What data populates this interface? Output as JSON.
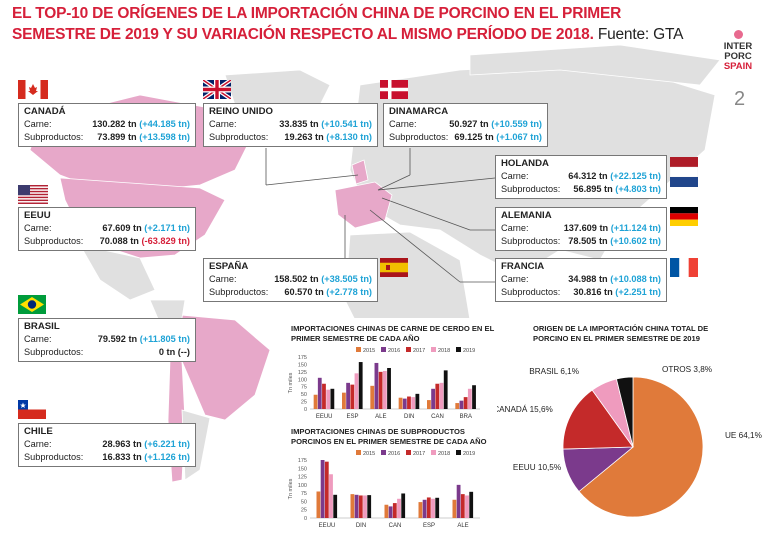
{
  "title": "EL TOP-10 DE ORÍGENES DE LA IMPORTACIÓN CHINA DE PORCINO EN EL PRIMER SEMESTRE DE 2019 Y SU VARIACIÓN RESPECTO AL MISMO PERÍODO DE 2018.",
  "source": "Fuente: GTA",
  "logo": {
    "line1": "INTER",
    "line2": "PORC",
    "line3": "SPAIN"
  },
  "page_number": "2",
  "labels": {
    "carne": "Carne:",
    "subproductos": "Subproductos:"
  },
  "countries": [
    {
      "id": "canada",
      "name": "CANADÁ",
      "carne": "130.282 tn",
      "carne_var": "(+44.185 tn)",
      "carne_sign": "pos",
      "sub": "73.899 tn",
      "sub_var": "(+13.598 tn)",
      "sub_sign": "pos"
    },
    {
      "id": "reino",
      "name": "REINO UNIDO",
      "carne": "33.835 tn",
      "carne_var": "(+10.541 tn)",
      "carne_sign": "pos",
      "sub": "19.263 tn",
      "sub_var": "(+8.130 tn)",
      "sub_sign": "pos"
    },
    {
      "id": "dinamarca",
      "name": "DINAMARCA",
      "carne": "50.927 tn",
      "carne_var": "(+10.559 tn)",
      "carne_sign": "pos",
      "sub": "69.125 tn",
      "sub_var": "(+1.067 tn)",
      "sub_sign": "pos"
    },
    {
      "id": "holanda",
      "name": "HOLANDA",
      "carne": "64.312 tn",
      "carne_var": "(+22.125 tn)",
      "carne_sign": "pos",
      "sub": "56.895 tn",
      "sub_var": "(+4.803 tn)",
      "sub_sign": "pos"
    },
    {
      "id": "eeuu",
      "name": "EEUU",
      "carne": "67.609 tn",
      "carne_var": "(+2.171 tn)",
      "carne_sign": "pos",
      "sub": "70.088 tn",
      "sub_var": "(-63.829 tn)",
      "sub_sign": "neg"
    },
    {
      "id": "alemania",
      "name": "ALEMANIA",
      "carne": "137.609 tn",
      "carne_var": "(+11.124 tn)",
      "carne_sign": "pos",
      "sub": "78.505 tn",
      "sub_var": "(+10.602 tn)",
      "sub_sign": "pos"
    },
    {
      "id": "espana",
      "name": "ESPAÑA",
      "carne": "158.502 tn",
      "carne_var": "(+38.505 tn)",
      "carne_sign": "pos",
      "sub": "60.570 tn",
      "sub_var": "(+2.778 tn)",
      "sub_sign": "pos"
    },
    {
      "id": "francia",
      "name": "FRANCIA",
      "carne": "34.988 tn",
      "carne_var": "(+10.088 tn)",
      "carne_sign": "pos",
      "sub": "30.816 tn",
      "sub_var": "(+2.251 tn)",
      "sub_sign": "pos"
    },
    {
      "id": "brasil",
      "name": "BRASIL",
      "carne": "79.592 tn",
      "carne_var": "(+11.805 tn)",
      "carne_sign": "pos",
      "sub": "0 tn",
      "sub_var": "(--)",
      "sub_sign": "none"
    },
    {
      "id": "chile",
      "name": "CHILE",
      "carne": "28.963 tn",
      "carne_var": "(+6.221 tn)",
      "carne_sign": "pos",
      "sub": "16.833 tn",
      "sub_var": "(+1.126 tn)",
      "sub_sign": "pos"
    }
  ],
  "colors": {
    "title_red": "#d6203a",
    "positive": "#1fa3d6",
    "negative": "#d6203a",
    "map_land": "#e0e0e0",
    "map_highlight": "#e7a8c9"
  },
  "chart_data": [
    {
      "type": "bar",
      "title": "IMPORTACIONES CHINAS DE CARNE DE CERDO EN EL PRIMER SEMESTRE DE CADA AÑO",
      "ylabel": "Tn miles",
      "ylim": [
        0,
        175
      ],
      "yticks": [
        "0",
        "25",
        "50",
        "75",
        "100",
        "125",
        "150",
        "175"
      ],
      "categories": [
        "EEUU",
        "ESP",
        "ALE",
        "DIN",
        "CAN",
        "BRA"
      ],
      "series": [
        {
          "name": "2015",
          "color": "#e07a3a",
          "values": [
            48,
            55,
            78,
            38,
            30,
            20
          ]
        },
        {
          "name": "2016",
          "color": "#7b3a8c",
          "values": [
            105,
            88,
            155,
            35,
            68,
            28
          ]
        },
        {
          "name": "2017",
          "color": "#c42a2a",
          "values": [
            85,
            82,
            125,
            42,
            85,
            40
          ]
        },
        {
          "name": "2018",
          "color": "#ef9bbe",
          "values": [
            65,
            120,
            128,
            40,
            88,
            68
          ]
        },
        {
          "name": "2019",
          "color": "#111111",
          "values": [
            68,
            158,
            138,
            51,
            130,
            80
          ]
        }
      ]
    },
    {
      "type": "bar",
      "title": "IMPORTACIONES CHINAS DE SUBPRODUCTOS PORCINOS EN EL PRIMER SEMESTRE DE CADA AÑO",
      "ylabel": "Tn miles",
      "ylim": [
        0,
        175
      ],
      "yticks": [
        "0",
        "25",
        "50",
        "75",
        "100",
        "125",
        "150",
        "175"
      ],
      "categories": [
        "EEUU",
        "DIN",
        "CAN",
        "ESP",
        "ALE"
      ],
      "series": [
        {
          "name": "2015",
          "color": "#e07a3a",
          "values": [
            80,
            72,
            40,
            48,
            55
          ]
        },
        {
          "name": "2016",
          "color": "#7b3a8c",
          "values": [
            180,
            70,
            35,
            55,
            100
          ]
        },
        {
          "name": "2017",
          "color": "#c42a2a",
          "values": [
            170,
            68,
            45,
            62,
            72
          ]
        },
        {
          "name": "2018",
          "color": "#ef9bbe",
          "values": [
            132,
            68,
            58,
            58,
            68
          ]
        },
        {
          "name": "2019",
          "color": "#111111",
          "values": [
            70,
            69,
            74,
            61,
            79
          ]
        }
      ]
    },
    {
      "type": "pie",
      "title": "ORIGEN DE LA IMPORTACIÓN CHINA TOTAL DE PORCINO EN EL PRIMER SEMESTRE DE 2019",
      "slices": [
        {
          "label": "UE",
          "display": "UE 64,1%",
          "value": 64.1,
          "color": "#e07a3a"
        },
        {
          "label": "EEUU",
          "display": "EEUU 10,5%",
          "value": 10.5,
          "color": "#7b3a8c"
        },
        {
          "label": "CANADÁ",
          "display": "CANADÁ 15,6%",
          "value": 15.6,
          "color": "#c42a2a"
        },
        {
          "label": "BRASIL",
          "display": "BRASIL 6,1%",
          "value": 6.1,
          "color": "#ef9bbe"
        },
        {
          "label": "OTROS",
          "display": "OTROS 3,8%",
          "value": 3.8,
          "color": "#111111"
        }
      ]
    }
  ]
}
